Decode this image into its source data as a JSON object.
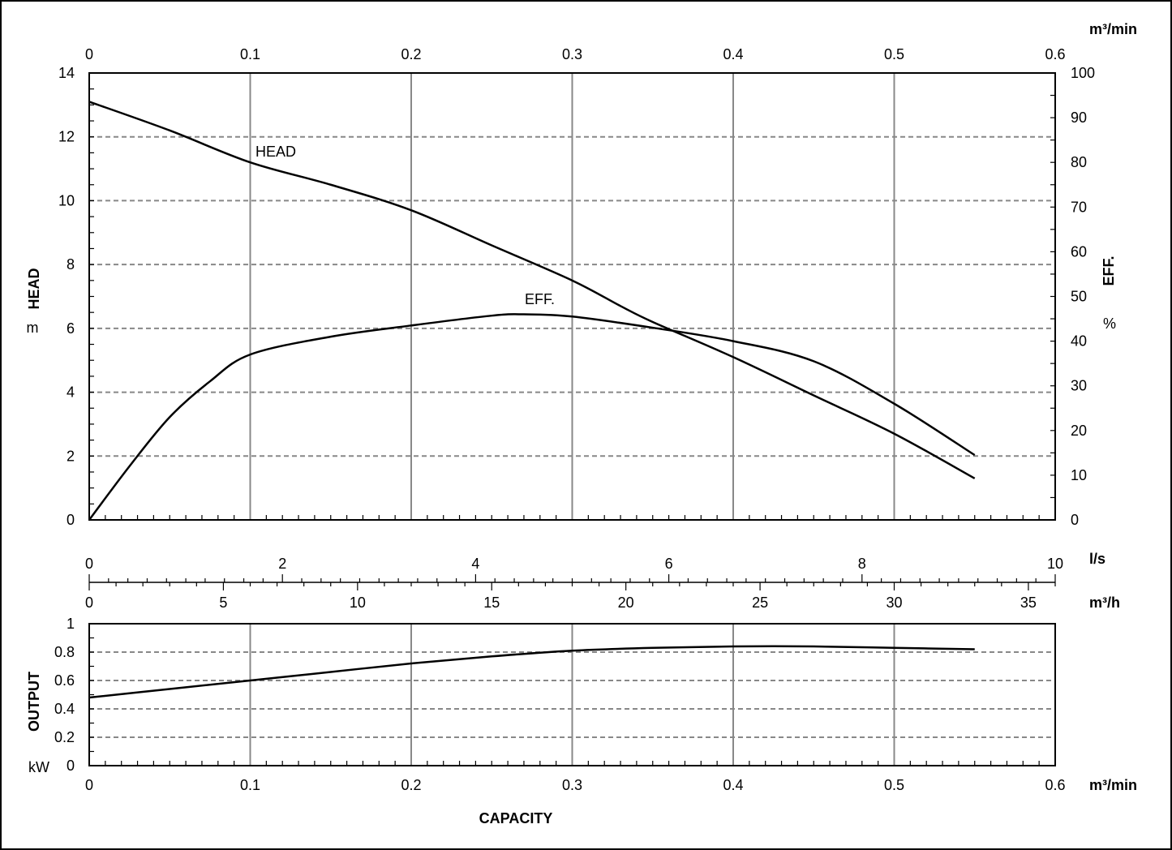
{
  "chart_data": [
    {
      "type": "line",
      "panel": "upper",
      "x_unit_top": "m³/min",
      "x_ticks_top": [
        "0",
        "0.1",
        "0.2",
        "0.3",
        "0.4",
        "0.5",
        "0.6"
      ],
      "xlim": [
        0,
        0.6
      ],
      "y_left": {
        "label": "HEAD",
        "unit": "m",
        "lim": [
          0,
          14
        ],
        "ticks": [
          "0",
          "2",
          "4",
          "6",
          "8",
          "10",
          "12",
          "14"
        ]
      },
      "y_right": {
        "label": "EFF.",
        "unit": "%",
        "lim": [
          0,
          100
        ],
        "ticks": [
          "0",
          "10",
          "20",
          "30",
          "40",
          "50",
          "60",
          "70",
          "80",
          "90",
          "100"
        ]
      },
      "grid": {
        "vertical": "solid",
        "horizontal": "dashed"
      },
      "series": [
        {
          "name": "HEAD",
          "axis": "left",
          "x": [
            0,
            0.05,
            0.1,
            0.15,
            0.2,
            0.25,
            0.3,
            0.33,
            0.35,
            0.4,
            0.45,
            0.5,
            0.55
          ],
          "y": [
            13.1,
            12.2,
            11.2,
            10.5,
            9.7,
            8.6,
            7.5,
            6.7,
            6.2,
            5.1,
            3.9,
            2.7,
            1.3
          ]
        },
        {
          "name": "EFF.",
          "axis": "right",
          "x": [
            0,
            0.025,
            0.05,
            0.075,
            0.1,
            0.15,
            0.2,
            0.25,
            0.27,
            0.3,
            0.35,
            0.4,
            0.45,
            0.5,
            0.55
          ],
          "y": [
            0,
            12,
            23,
            31,
            37,
            41,
            43.5,
            45.7,
            46,
            45.5,
            43,
            40,
            35.5,
            26,
            14.5
          ]
        }
      ]
    },
    {
      "type": "axis",
      "panel": "capacity-scales",
      "ls_unit": "l/s",
      "ls_ticks": [
        "0",
        "2",
        "4",
        "6",
        "8",
        "10"
      ],
      "ls_lim": [
        0,
        10
      ],
      "m3h_unit": "m³/h",
      "m3h_ticks": [
        "0",
        "5",
        "10",
        "15",
        "20",
        "25",
        "30",
        "35"
      ],
      "m3h_lim": [
        0,
        36
      ]
    },
    {
      "type": "line",
      "panel": "lower",
      "xlabel": "CAPACITY",
      "x_unit_bottom": "m³/min",
      "x_ticks_bottom": [
        "0",
        "0.1",
        "0.2",
        "0.3",
        "0.4",
        "0.5",
        "0.6"
      ],
      "xlim": [
        0,
        0.6
      ],
      "y_left": {
        "label": "OUTPUT",
        "unit": "kW",
        "lim": [
          0,
          1
        ],
        "ticks": [
          "0",
          "0.2",
          "0.4",
          "0.6",
          "0.8",
          "1"
        ]
      },
      "grid": {
        "vertical": "solid",
        "horizontal": "dashed"
      },
      "series": [
        {
          "name": "OUTPUT",
          "axis": "left",
          "x": [
            0,
            0.05,
            0.1,
            0.15,
            0.2,
            0.25,
            0.3,
            0.35,
            0.4,
            0.45,
            0.5,
            0.55
          ],
          "y": [
            0.48,
            0.54,
            0.6,
            0.66,
            0.72,
            0.77,
            0.81,
            0.83,
            0.84,
            0.84,
            0.83,
            0.82
          ]
        }
      ]
    }
  ]
}
